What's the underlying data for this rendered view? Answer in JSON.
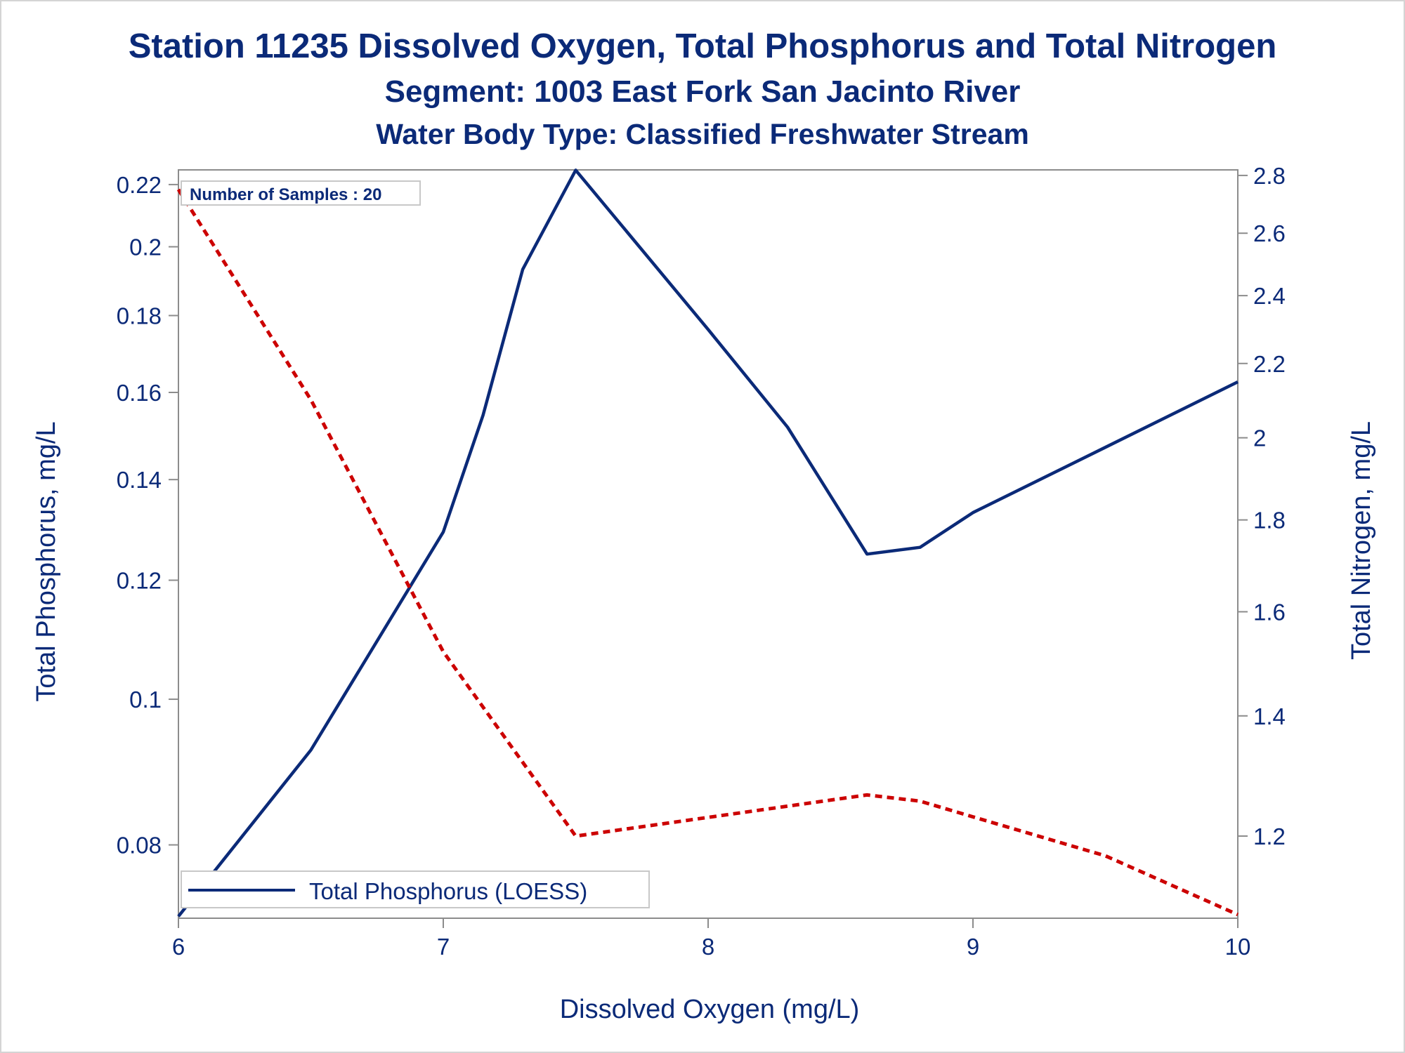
{
  "titles": {
    "line1": "Station 11235  Dissolved Oxygen, Total Phosphorus and Total Nitrogen",
    "line2": "Segment: 1003  East Fork San Jacinto River",
    "line3": "Water Body Type: Classified Freshwater Stream"
  },
  "annotation": "Number of Samples : 20",
  "legend_label": "Total Phosphorus (LOESS)",
  "colors": {
    "title": "#0b2a78",
    "phosphorus_line": "#0b2a78",
    "nitrogen_line": "#cc0000",
    "axis": "#8c8c8c"
  },
  "chart_data": {
    "type": "line",
    "xlabel": "Dissolved Oxygen (mg/L)",
    "ylabel": "Total Phosphorus, mg/L",
    "y2label": "Total Nitrogen, mg/L",
    "x_ticks": [
      "6",
      "7",
      "8",
      "9",
      "10"
    ],
    "y_ticks": [
      "0.08",
      "0.1",
      "0.12",
      "0.14",
      "0.16",
      "0.18",
      "0.2",
      "0.22"
    ],
    "y2_ticks": [
      "1.2",
      "1.4",
      "1.6",
      "1.8",
      "2",
      "2.2",
      "2.4",
      "2.6",
      "2.8"
    ],
    "xlim": [
      6,
      10
    ],
    "ylim": [
      0.0715,
      0.225
    ],
    "y_scale": "log",
    "y2lim": [
      1.08,
      2.82
    ],
    "y2_scale": "log",
    "legend_position": "bottom-left (inside plot)",
    "series": [
      {
        "name": "Total Phosphorus (LOESS)",
        "axis": "left",
        "style": "solid",
        "x": [
          6.0,
          6.5,
          7.0,
          7.15,
          7.3,
          7.5,
          8.0,
          8.3,
          8.6,
          8.8,
          9.0,
          9.5,
          10.0
        ],
        "y": [
          0.0717,
          0.0925,
          0.1292,
          0.1545,
          0.1932,
          0.2249,
          0.1762,
          0.1517,
          0.1249,
          0.1262,
          0.1331,
          0.1471,
          0.1626
        ]
      },
      {
        "name": "Total Nitrogen",
        "axis": "right",
        "style": "dashed",
        "x": [
          6.0,
          6.5,
          7.0,
          7.5,
          8.6,
          8.8,
          9.0,
          9.5,
          10.0
        ],
        "y": [
          2.75,
          2.1,
          1.52,
          1.2,
          1.265,
          1.255,
          1.23,
          1.17,
          1.085
        ]
      }
    ]
  }
}
